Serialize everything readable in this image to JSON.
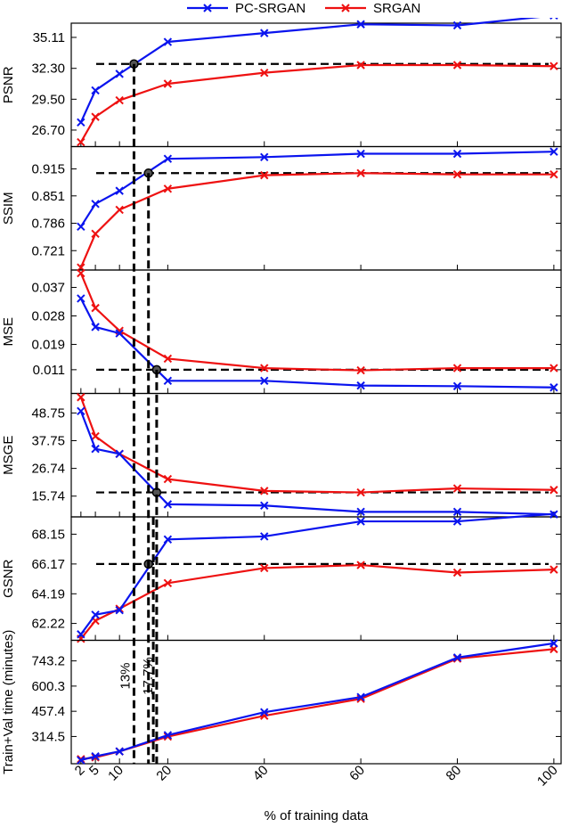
{
  "chart_data": {
    "type": "line",
    "xlabel": "% of training data",
    "x": [
      2,
      5,
      10,
      20,
      40,
      60,
      80,
      100
    ],
    "x_ticks": [
      "2",
      "5",
      "10",
      "20",
      "40",
      "60",
      "80",
      "100"
    ],
    "xlim": [
      0,
      101.5
    ],
    "legend": {
      "placement": "top-center",
      "entries": [
        "PC-SRGAN",
        "SRGAN"
      ]
    },
    "colors": {
      "PC-SRGAN": "#0a14ee",
      "SRGAN": "#ee1111",
      "reference": "#000000"
    },
    "panels": [
      {
        "ylabel": "PSNR",
        "ylim": [
          25.2,
          36.4
        ],
        "y_ticks": [
          "26.70",
          "29.50",
          "32.30",
          "35.11"
        ],
        "y_tick_values": [
          26.7,
          29.5,
          32.3,
          35.11
        ],
        "series": [
          {
            "name": "PC-SRGAN",
            "values": [
              27.4,
              30.3,
              31.8,
              34.7,
              35.5,
              36.3,
              36.2,
              37.1
            ]
          },
          {
            "name": "SRGAN",
            "values": [
              25.6,
              27.9,
              29.4,
              30.9,
              31.9,
              32.6,
              32.6,
              32.5
            ]
          }
        ],
        "reference_y": 32.7,
        "marker": {
          "x": 13,
          "y": 32.7
        }
      },
      {
        "ylabel": "SSIM",
        "ylim": [
          0.675,
          0.968
        ],
        "y_ticks": [
          "0.721",
          "0.786",
          "0.851",
          "0.915"
        ],
        "y_tick_values": [
          0.721,
          0.786,
          0.851,
          0.915
        ],
        "series": [
          {
            "name": "PC-SRGAN",
            "values": [
              0.778,
              0.832,
              0.863,
              0.939,
              0.943,
              0.951,
              0.951,
              0.956
            ]
          },
          {
            "name": "SRGAN",
            "values": [
              0.681,
              0.761,
              0.818,
              0.868,
              0.9,
              0.905,
              0.902,
              0.902
            ]
          }
        ],
        "reference_y": 0.905,
        "marker": {
          "x": 16,
          "y": 0.905
        }
      },
      {
        "ylabel": "MSE",
        "ylim": [
          0.0035,
          0.0425
        ],
        "y_ticks": [
          "0.011",
          "0.019",
          "0.028",
          "0.037"
        ],
        "y_tick_values": [
          0.011,
          0.019,
          0.028,
          0.037
        ],
        "series": [
          {
            "name": "PC-SRGAN",
            "values": [
              0.0335,
              0.0245,
              0.0225,
              0.0075,
              0.0075,
              0.006,
              0.0058,
              0.0054
            ]
          },
          {
            "name": "SRGAN",
            "values": [
              0.0415,
              0.0305,
              0.0233,
              0.0145,
              0.0115,
              0.0108,
              0.0115,
              0.0115
            ]
          }
        ],
        "reference_y": 0.011,
        "marker": {
          "x": 17.7,
          "y": 0.011
        }
      },
      {
        "ylabel": "MSGE",
        "ylim": [
          7.5,
          56.5
        ],
        "y_ticks": [
          "15.74",
          "26.74",
          "37.75",
          "48.75"
        ],
        "y_tick_values": [
          15.74,
          26.74,
          37.75,
          48.75
        ],
        "series": [
          {
            "name": "PC-SRGAN",
            "values": [
              49.5,
              34.5,
              32.5,
              12.5,
              12.0,
              9.5,
              9.5,
              8.5
            ]
          },
          {
            "name": "SRGAN",
            "values": [
              55.0,
              39.5,
              32.5,
              22.5,
              17.8,
              17.2,
              18.8,
              18.2
            ]
          }
        ],
        "reference_y": 17.2,
        "marker": {
          "x": 17.7,
          "y": 17.2
        }
      },
      {
        "ylabel": "GSNR",
        "ylim": [
          61.1,
          69.3
        ],
        "y_ticks": [
          "62.22",
          "64.19",
          "66.17",
          "68.15"
        ],
        "y_tick_values": [
          62.22,
          64.19,
          66.17,
          68.15
        ],
        "series": [
          {
            "name": "PC-SRGAN",
            "values": [
              61.5,
              62.8,
              63.1,
              67.8,
              68.0,
              69.0,
              69.0,
              69.5
            ]
          },
          {
            "name": "SRGAN",
            "values": [
              61.2,
              62.4,
              63.2,
              64.9,
              65.9,
              66.1,
              65.6,
              65.8
            ]
          }
        ],
        "reference_y": 66.17,
        "marker": {
          "x": 16,
          "y": 66.17
        }
      },
      {
        "ylabel": "Train+Val time (minutes)",
        "ylim": [
          160,
          860
        ],
        "y_ticks": [
          "314.5",
          "457.4",
          "600.3",
          "743.2"
        ],
        "y_tick_values": [
          314.5,
          457.4,
          600.3,
          743.2
        ],
        "series": [
          {
            "name": "PC-SRGAN",
            "values": [
              180,
              202,
              230,
              322,
              452,
              538,
              762,
              843
            ]
          },
          {
            "name": "SRGAN",
            "values": [
              186,
              196,
              230,
              314,
              432,
              528,
              756,
              810
            ]
          }
        ]
      }
    ],
    "vertical_markers": [
      {
        "x": 13,
        "label": "13%"
      },
      {
        "x": 16,
        "label": ""
      },
      {
        "x": 17,
        "label": ""
      },
      {
        "x": 17.7,
        "label": "17.7%"
      }
    ]
  }
}
